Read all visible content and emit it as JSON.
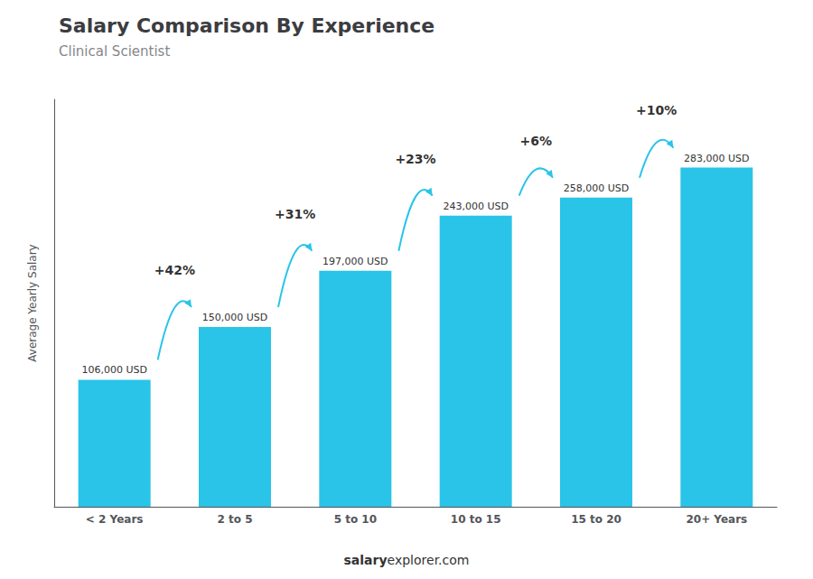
{
  "chart_data": {
    "type": "bar",
    "title": "Salary Comparison By Experience",
    "subtitle": "Clinical Scientist",
    "categories": [
      "< 2 Years",
      "2 to 5",
      "5 to 10",
      "10 to 15",
      "15 to 20",
      "20+ Years"
    ],
    "values": [
      106000,
      150000,
      197000,
      243000,
      258000,
      283000
    ],
    "value_labels": [
      "106,000 USD",
      "150,000 USD",
      "197,000 USD",
      "243,000 USD",
      "258,000 USD",
      "283,000 USD"
    ],
    "data_labels": true,
    "annotations": [
      "+42%",
      "+31%",
      "+23%",
      "+6%",
      "+10%"
    ],
    "ylabel": "Average Yearly Salary",
    "footer": [
      "salary",
      "explorer.com"
    ],
    "color": "#29C4E8",
    "ylim": [
      0,
      340000
    ],
    "tick_labels": "x",
    "grid": false
  }
}
